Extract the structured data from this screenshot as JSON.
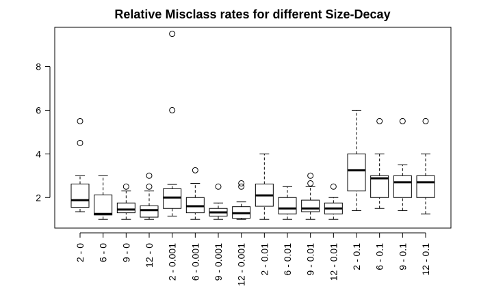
{
  "chart_data": {
    "type": "boxplot",
    "title": "Relative Misclass rates for different Size-Decay",
    "xlabel": "",
    "ylabel": "",
    "ylim": [
      0.6,
      9.8
    ],
    "yticks": [
      2,
      4,
      6,
      8
    ],
    "categories": [
      "2 - 0",
      "6 - 0",
      "9 - 0",
      "12 - 0",
      "2 - 0.001",
      "6 - 0.001",
      "9 - 0.001",
      "12 - 0.001",
      "2 - 0.01",
      "6 - 0.01",
      "9 - 0.01",
      "12 - 0.01",
      "2 - 0.1",
      "6 - 0.1",
      "9 - 0.1",
      "12 - 0.1"
    ],
    "boxes": [
      {
        "whisker_low": 1.35,
        "q1": 1.55,
        "median": 1.88,
        "q3": 2.62,
        "whisker_high": 3.0,
        "outliers": [
          4.5,
          5.5
        ]
      },
      {
        "whisker_low": 1.0,
        "q1": 1.2,
        "median": 1.25,
        "q3": 2.12,
        "whisker_high": 3.0,
        "outliers": []
      },
      {
        "whisker_low": 1.0,
        "q1": 1.3,
        "median": 1.45,
        "q3": 1.75,
        "whisker_high": 2.3,
        "outliers": [
          2.5
        ]
      },
      {
        "whisker_low": 1.0,
        "q1": 1.1,
        "median": 1.42,
        "q3": 1.62,
        "whisker_high": 2.3,
        "outliers": [
          2.5,
          3.0
        ]
      },
      {
        "whisker_low": 1.15,
        "q1": 1.5,
        "median": 2.0,
        "q3": 2.4,
        "whisker_high": 2.6,
        "outliers": [
          6.0,
          9.5
        ]
      },
      {
        "whisker_low": 1.0,
        "q1": 1.3,
        "median": 1.6,
        "q3": 2.0,
        "whisker_high": 2.65,
        "outliers": [
          3.25
        ]
      },
      {
        "whisker_low": 1.0,
        "q1": 1.15,
        "median": 1.32,
        "q3": 1.5,
        "whisker_high": 1.75,
        "outliers": [
          2.5
        ]
      },
      {
        "whisker_low": 1.0,
        "q1": 1.05,
        "median": 1.28,
        "q3": 1.58,
        "whisker_high": 1.8,
        "outliers": [
          2.5,
          2.65
        ]
      },
      {
        "whisker_low": 1.0,
        "q1": 1.6,
        "median": 2.1,
        "q3": 2.62,
        "whisker_high": 4.0,
        "outliers": []
      },
      {
        "whisker_low": 1.0,
        "q1": 1.25,
        "median": 1.5,
        "q3": 2.0,
        "whisker_high": 2.5,
        "outliers": []
      },
      {
        "whisker_low": 1.0,
        "q1": 1.35,
        "median": 1.5,
        "q3": 1.88,
        "whisker_high": 2.5,
        "outliers": [
          2.65,
          3.0
        ]
      },
      {
        "whisker_low": 1.0,
        "q1": 1.25,
        "median": 1.5,
        "q3": 1.75,
        "whisker_high": 2.0,
        "outliers": [
          2.5
        ]
      },
      {
        "whisker_low": 1.4,
        "q1": 2.3,
        "median": 3.25,
        "q3": 4.0,
        "whisker_high": 6.0,
        "outliers": []
      },
      {
        "whisker_low": 1.5,
        "q1": 2.0,
        "median": 2.88,
        "q3": 3.0,
        "whisker_high": 4.0,
        "outliers": [
          5.5
        ]
      },
      {
        "whisker_low": 1.4,
        "q1": 2.0,
        "median": 2.7,
        "q3": 3.0,
        "whisker_high": 3.5,
        "outliers": [
          5.5
        ]
      },
      {
        "whisker_low": 1.25,
        "q1": 2.0,
        "median": 2.7,
        "q3": 3.0,
        "whisker_high": 4.0,
        "outliers": [
          5.5
        ]
      }
    ],
    "grid": false,
    "legend": "none"
  }
}
